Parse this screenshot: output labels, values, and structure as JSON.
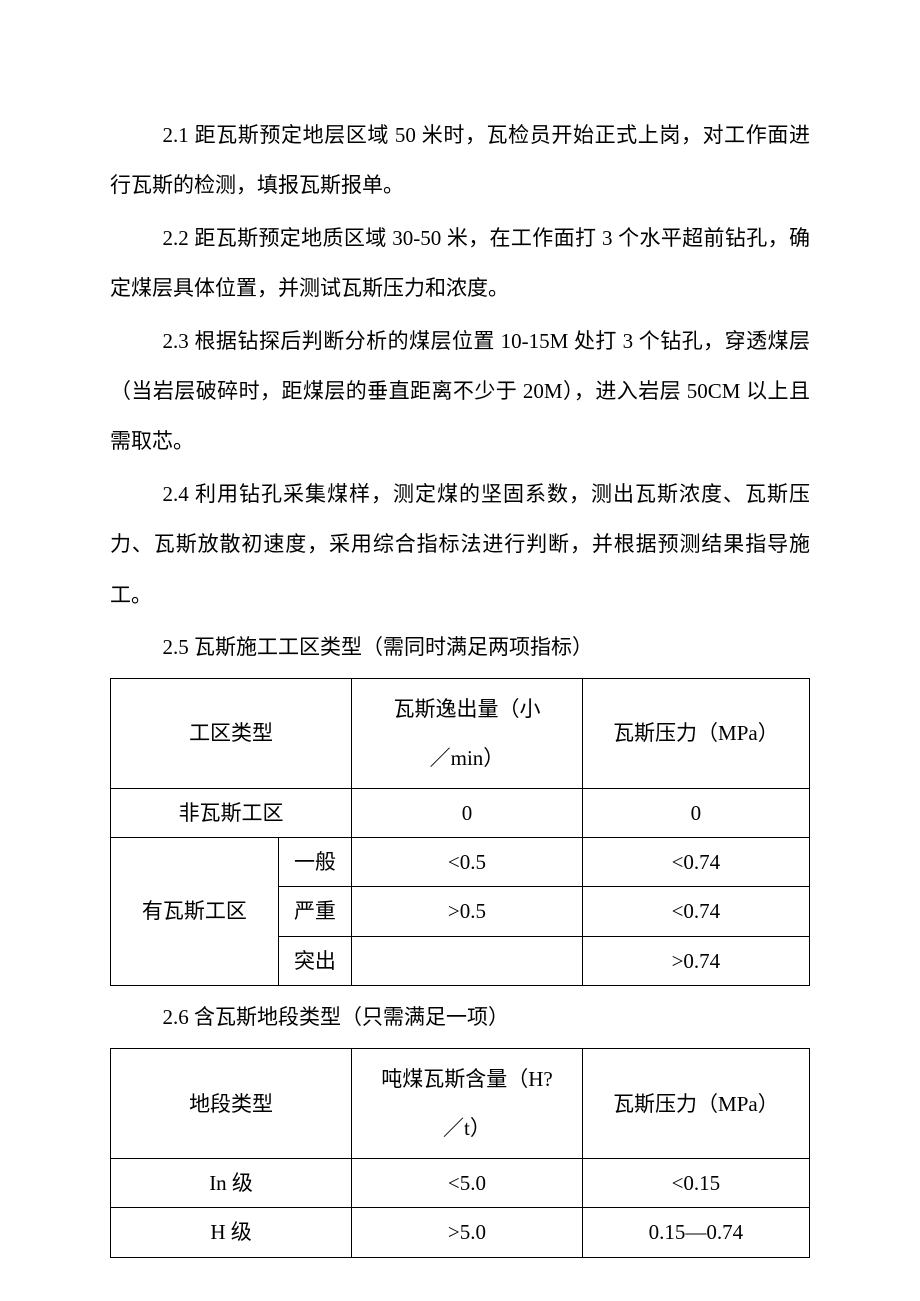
{
  "paragraphs": {
    "p1": "2.1 距瓦斯预定地层区域 50 米时，瓦检员开始正式上岗，对工作面进行瓦斯的检测，填报瓦斯报单。",
    "p2": "2.2 距瓦斯预定地质区域 30-50 米，在工作面打 3 个水平超前钻孔，确定煤层具体位置，并测试瓦斯压力和浓度。",
    "p3": "2.3 根据钻探后判断分析的煤层位置 10-15M 处打 3 个钻孔，穿透煤层（当岩层破碎时，距煤层的垂直距离不少于 20M），进入岩层 50CM 以上且需取芯。",
    "p4": "2.4 利用钻孔采集煤样，测定煤的坚固系数，测出瓦斯浓度、瓦斯压力、瓦斯放散初速度，采用综合指标法进行判断，并根据预测结果指导施工。",
    "p5": "2.5 瓦斯施工工区类型（需同时满足两项指标）",
    "p6": "2.6 含瓦斯地段类型（只需满足一项）"
  },
  "table1": {
    "headers": {
      "col1": "工区类型",
      "col2_line1": "瓦斯逸出量（小",
      "col2_line2": "／min）",
      "col3": "瓦斯压力（MPa）"
    },
    "row1": {
      "type": "非瓦斯工区",
      "emission": "0",
      "pressure": "0"
    },
    "row2": {
      "type": "有瓦斯工区",
      "level": "一般",
      "emission": "<0.5",
      "pressure": "<0.74"
    },
    "row3": {
      "level": "严重",
      "emission": ">0.5",
      "pressure": "<0.74"
    },
    "row4": {
      "level": "突出",
      "emission": "",
      "pressure": ">0.74"
    }
  },
  "table2": {
    "headers": {
      "col1": "地段类型",
      "col2_line1": "吨煤瓦斯含量（H?",
      "col2_line2": "／t）",
      "col3": "瓦斯压力（MPa）"
    },
    "row1": {
      "type": "In 级",
      "content": "<5.0",
      "pressure": "<0.15"
    },
    "row2": {
      "type": "H 级",
      "content": ">5.0",
      "pressure": "0.15—0.74"
    }
  }
}
